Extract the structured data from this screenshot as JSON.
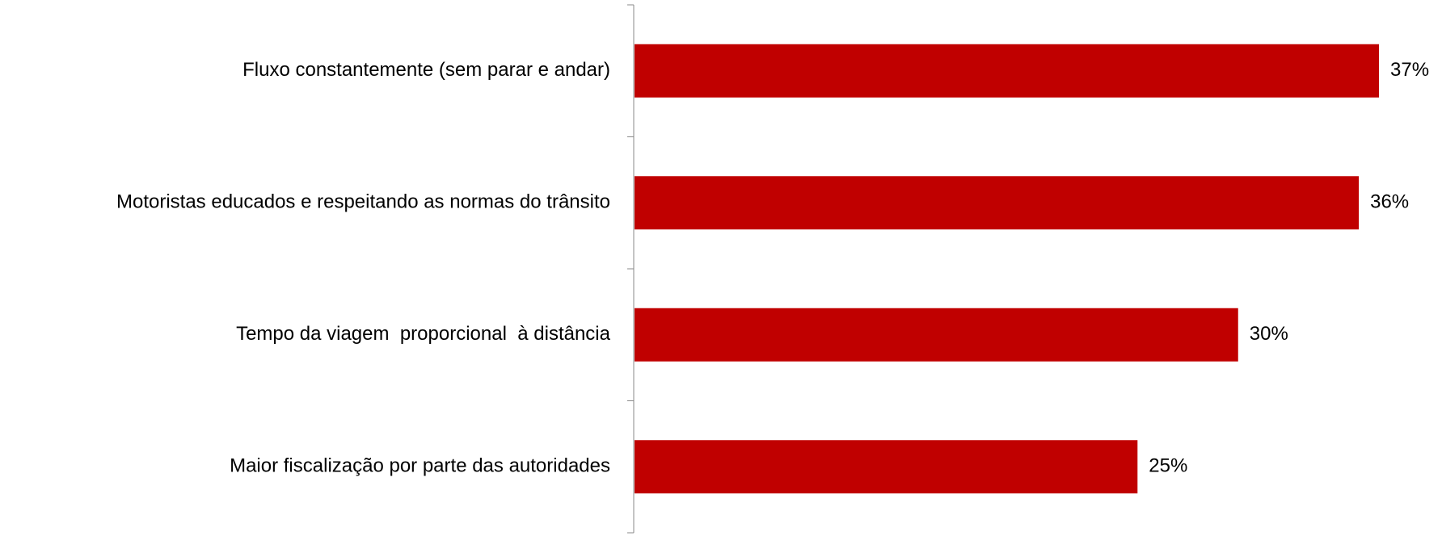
{
  "chart_data": {
    "type": "bar",
    "orientation": "horizontal",
    "categories": [
      "Fluxo constantemente (sem parar e andar)",
      "Motoristas educados e respeitando as normas do trânsito",
      "Tempo da viagem  proporcional  à distância",
      "Maior fiscalização por parte das autoridades"
    ],
    "values": [
      37,
      36,
      30,
      25
    ],
    "value_labels": [
      "37%",
      "36%",
      "30%",
      "25%"
    ],
    "color": "#c00000"
  }
}
